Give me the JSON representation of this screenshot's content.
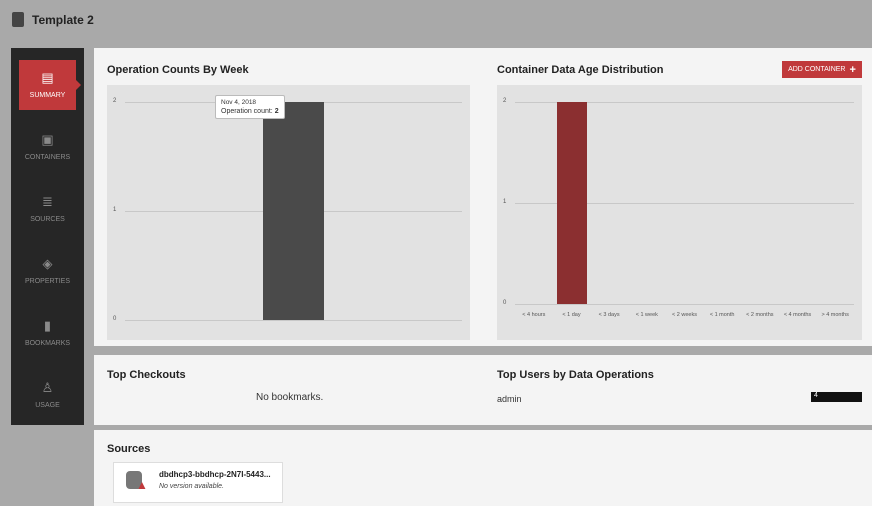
{
  "header": {
    "title": "Template 2",
    "icon": "document-icon"
  },
  "sidebar": {
    "items": [
      {
        "label": "SUMMARY",
        "icon": "document-icon",
        "active": true
      },
      {
        "label": "CONTAINERS",
        "icon": "container-icon"
      },
      {
        "label": "SOURCES",
        "icon": "database-icon"
      },
      {
        "label": "PROPERTIES",
        "icon": "layers-icon"
      },
      {
        "label": "BOOKMARKS",
        "icon": "bookmark-icon"
      },
      {
        "label": "USAGE",
        "icon": "usage-icon"
      }
    ]
  },
  "ops": {
    "title": "Operation Counts By Week",
    "tooltip": {
      "date": "Nov 4, 2018",
      "label": "Operation count:",
      "value": "2"
    }
  },
  "age": {
    "title": "Container Data Age Distribution",
    "add_button": "ADD CONTAINER"
  },
  "chart_data": [
    {
      "type": "bar",
      "title": "Operation Counts By Week",
      "categories": [
        "Nov 4, 2018"
      ],
      "values": [
        2
      ],
      "ylim": [
        0,
        2
      ],
      "yticks": [
        "0",
        "1",
        "2"
      ],
      "color": "#4a4a4a"
    },
    {
      "type": "bar",
      "title": "Container Data Age Distribution",
      "categories": [
        "< 4 hours",
        "< 1 day",
        "< 3 days",
        "< 1 week",
        "< 2 weeks",
        "< 1 month",
        "< 2 months",
        "< 4 months",
        "> 4 months"
      ],
      "values": [
        0,
        2,
        0,
        0,
        0,
        0,
        0,
        0,
        0
      ],
      "ylim": [
        0,
        2
      ],
      "yticks": [
        "0",
        "1",
        "2"
      ],
      "color": "#8b2f30"
    }
  ],
  "checkouts": {
    "title": "Top Checkouts",
    "empty": "No bookmarks."
  },
  "topusers": {
    "title": "Top Users by Data Operations",
    "users": [
      {
        "name": "admin",
        "count": "4"
      }
    ]
  },
  "sources": {
    "title": "Sources",
    "items": [
      {
        "name": "dbdhcp3-bbdhcp-2N7I-5443...",
        "status": "No version available."
      }
    ]
  }
}
